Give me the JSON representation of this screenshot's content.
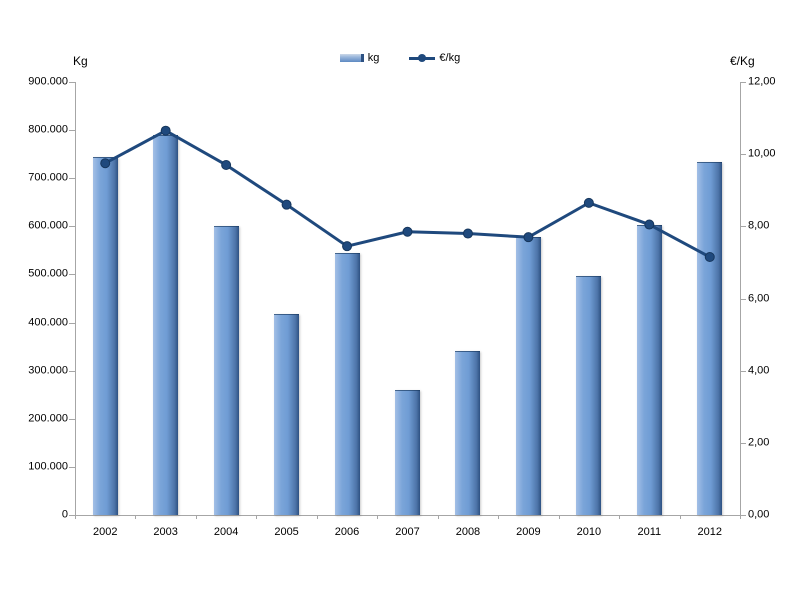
{
  "chart_data": {
    "type": "combo",
    "categories": [
      "2002",
      "2003",
      "2004",
      "2005",
      "2006",
      "2007",
      "2008",
      "2009",
      "2010",
      "2011",
      "2012"
    ],
    "series": [
      {
        "name": "kg",
        "type": "bar",
        "axis": "left",
        "values": [
          745000,
          790000,
          600000,
          417000,
          544000,
          260000,
          340000,
          577000,
          497000,
          602000,
          733000
        ]
      },
      {
        "name": "€/kg",
        "type": "line",
        "axis": "right",
        "values": [
          9.75,
          10.65,
          9.7,
          8.6,
          7.45,
          7.85,
          7.8,
          7.7,
          8.65,
          8.05,
          7.15
        ]
      }
    ],
    "left_axis": {
      "title": "Kg",
      "min": 0,
      "max": 900000,
      "step": 100000,
      "tick_labels": [
        "900.000",
        "800.000",
        "700.000",
        "600.000",
        "500.000",
        "400.000",
        "300.000",
        "200.000",
        "100.000",
        "0"
      ]
    },
    "right_axis": {
      "title": "€/Kg",
      "min": 0,
      "max": 12,
      "step": 2,
      "tick_labels": [
        "12,00",
        "10,00",
        "8,00",
        "6,00",
        "4,00",
        "2,00",
        "0,00"
      ]
    },
    "legend": {
      "position": "top-center",
      "items": [
        {
          "label": "kg"
        },
        {
          "label": "€/kg"
        }
      ]
    },
    "grid": false
  },
  "colors": {
    "bar_fill_light": "#9ab9e3",
    "bar_fill_mid": "#6f9cd4",
    "bar_fill_dark": "#2d5182",
    "line": "#1F497D",
    "axis": "#A6A6A6",
    "text": "#000000",
    "background": "#FFFFFF"
  }
}
